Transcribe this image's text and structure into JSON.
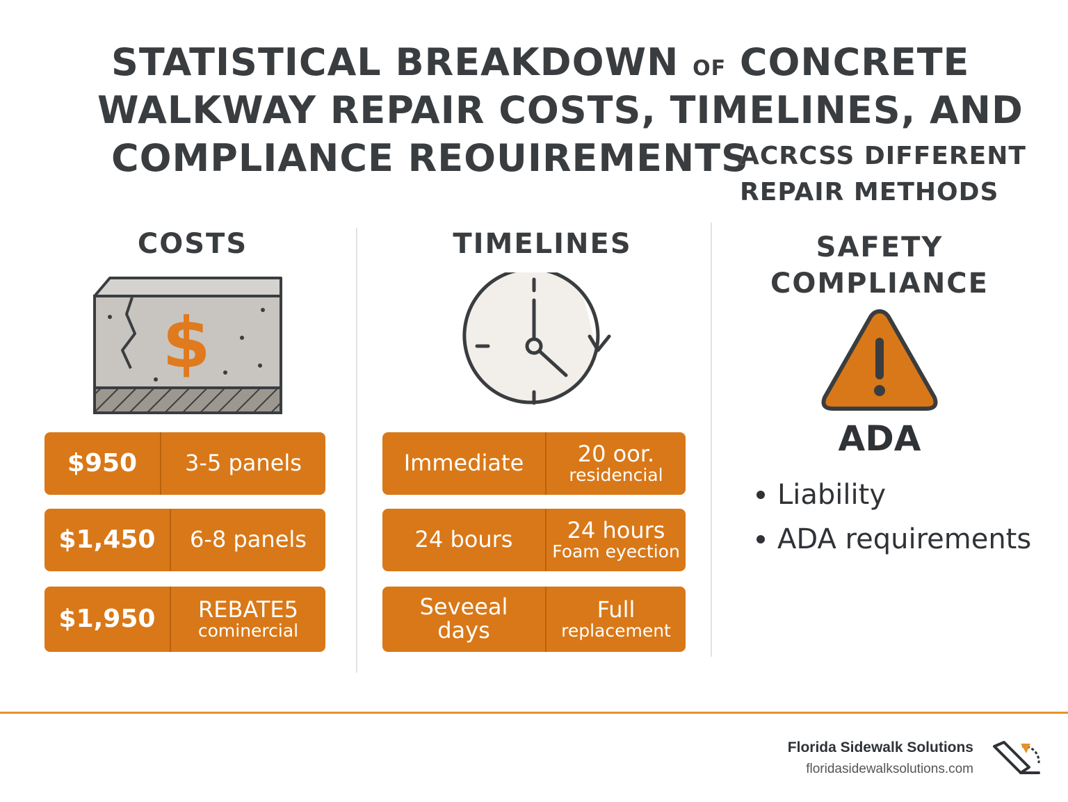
{
  "title": {
    "line1_a": "STATISTICAL BREAKDOWN",
    "line1_of": "OF",
    "line1_b": "CONCRETE",
    "line2": "WALKWAY REPAIR COSTS, TIMELINES, AND",
    "line3": "COMPLIANCE REOUIREMENTS",
    "sub1": "ACRCSS DIFFERENT",
    "sub2": "REPAIR METHODS"
  },
  "costs": {
    "heading": "COSTS",
    "icon": "cracked-concrete-dollar-icon",
    "rows": [
      {
        "value": "$950",
        "desc": "3-5 panels",
        "desc2": ""
      },
      {
        "value": "$1,450",
        "desc": "6-8 panels",
        "desc2": ""
      },
      {
        "value": "$1,950",
        "desc": "REBATE5",
        "desc2": "cominercial"
      }
    ]
  },
  "timelines": {
    "heading": "TIMELINES",
    "icon": "clock-icon",
    "rows": [
      {
        "left": "Immediate",
        "left2": "",
        "right": "20 oor.",
        "right2": "residencial"
      },
      {
        "left": "24 bours",
        "left2": "",
        "right": "24 hours",
        "right2": "Foam eyection"
      },
      {
        "left": "Seveeal",
        "left2": "days",
        "right": "Full",
        "right2": "replacement"
      }
    ]
  },
  "safety": {
    "heading1": "SAFETY",
    "heading2": "COMPLIANCE",
    "icon": "warning-triangle-icon",
    "label": "ADA",
    "bullets": [
      "Liability",
      "ADA requirements"
    ]
  },
  "footer": {
    "brand": "Florida Sidewalk Solutions",
    "url": "floridasidewalksolutions.com",
    "logo_icon": "sidewalk-logo-icon"
  },
  "colors": {
    "accent": "#d97818",
    "text": "#2f3236",
    "footer_line": "#e8922a"
  }
}
